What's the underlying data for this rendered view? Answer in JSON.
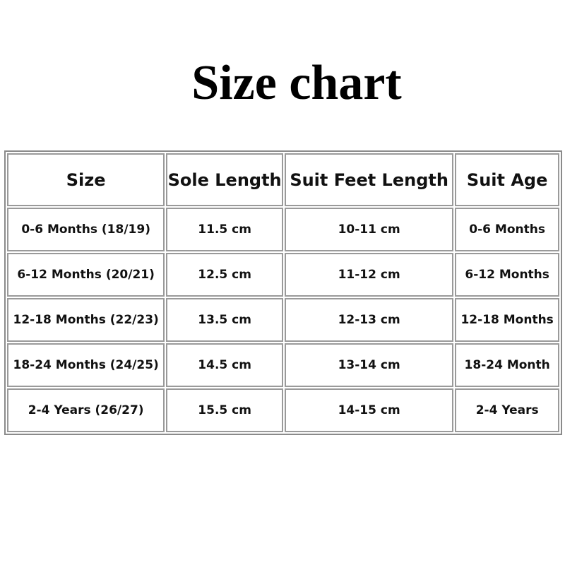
{
  "title": "Size chart",
  "table": {
    "headers": [
      "Size",
      "Sole Length",
      "Suit Feet Length",
      "Suit Age"
    ],
    "rows": [
      [
        "0-6 Months (18/19)",
        "11.5 cm",
        "10-11 cm",
        "0-6 Months"
      ],
      [
        "6-12 Months (20/21)",
        "12.5 cm",
        "11-12 cm",
        "6-12 Months"
      ],
      [
        "12-18 Months (22/23)",
        "13.5 cm",
        "12-13 cm",
        "12-18 Months"
      ],
      [
        "18-24 Months (24/25)",
        "14.5 cm",
        "13-14 cm",
        "18-24 Month"
      ],
      [
        "2-4 Years (26/27)",
        "15.5 cm",
        "14-15 cm",
        "2-4 Years"
      ]
    ]
  }
}
